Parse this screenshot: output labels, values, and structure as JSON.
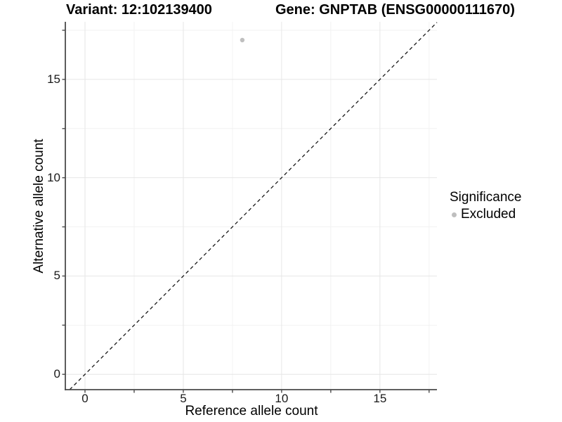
{
  "figure": {
    "title_left": "Variant: 12:102139400",
    "title_right": "Gene: GNPTAB (ENSG00000111670)"
  },
  "chart_data": {
    "type": "scatter",
    "xlabel": "Reference allele count",
    "ylabel": "Alternative allele count",
    "xlim": [
      -1.0,
      17.9
    ],
    "ylim": [
      -0.78,
      17.93
    ],
    "x_major_ticks": [
      0,
      5,
      10,
      15
    ],
    "x_minor_ticks": [
      2.5,
      7.5,
      12.5,
      17.5
    ],
    "y_major_ticks": [
      0,
      5,
      10,
      15
    ],
    "y_minor_ticks": [
      2.5,
      7.5,
      12.5,
      17.5
    ],
    "grid": "major+minor",
    "series": [
      {
        "name": "Excluded",
        "color": "#bfbfbf",
        "marker": "circle",
        "points": [
          {
            "x": 8,
            "y": 17
          }
        ]
      }
    ],
    "reference_line": {
      "type": "identity",
      "slope": 1,
      "intercept": 0,
      "style": "dashed",
      "color": "#1a1a1a"
    },
    "legend": {
      "title": "Significance",
      "position": "right",
      "items": [
        {
          "label": "Excluded",
          "color": "#bfbfbf",
          "marker": "circle"
        }
      ]
    }
  },
  "colors": {
    "background": "#ffffff",
    "axis_line": "#4a4a4a",
    "tick_mark": "#4a4a4a",
    "grid_major": "#e6e6e6",
    "grid_minor": "#f2f2f2",
    "tick_label": "#1a1a1a",
    "point_gray": "#bfbfbf",
    "reference_line": "#1a1a1a"
  }
}
